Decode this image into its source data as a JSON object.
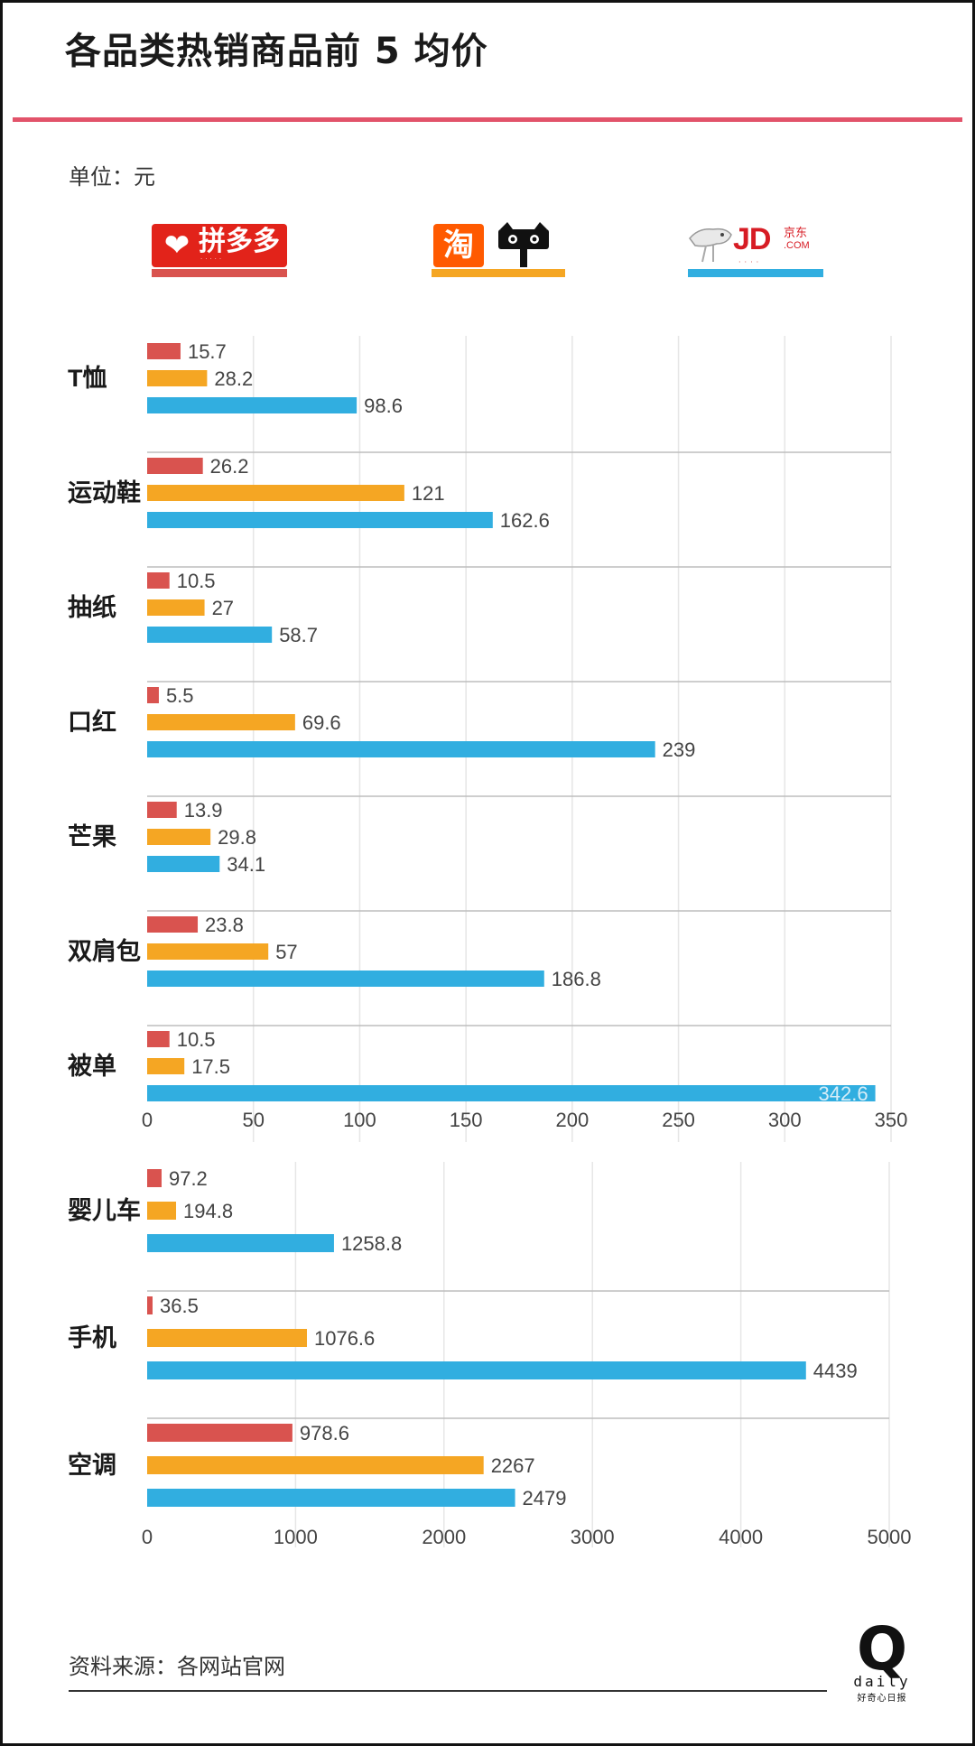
{
  "title": "各品类热销商品前 5 均价",
  "unit_label": "单位：元",
  "source": "资料来源：各网站官网",
  "brands": {
    "pinduoduo": {
      "name": "拼多多",
      "color": "#d9534f"
    },
    "taobao": {
      "name": "淘",
      "color": "#f5a623"
    },
    "jd": {
      "name": "JD.COM",
      "cn": "京东",
      "color": "#31aee0"
    }
  },
  "footer_logo": {
    "mark": "Q",
    "word": "daily",
    "cn": "好奇心日报"
  },
  "chart_data": [
    {
      "type": "bar",
      "orientation": "horizontal",
      "categories": [
        "T恤",
        "运动鞋",
        "抽纸",
        "口红",
        "芒果",
        "双肩包",
        "被单"
      ],
      "series": [
        {
          "values": [
            15.7,
            26.2,
            10.5,
            5.5,
            13.9,
            23.8,
            10.5
          ],
          "color": "#d9534f"
        },
        {
          "values": [
            28.2,
            121,
            27,
            69.6,
            29.8,
            57,
            17.5
          ],
          "color": "#f5a623"
        },
        {
          "values": [
            98.6,
            162.6,
            58.7,
            239,
            34.1,
            186.8,
            342.6
          ],
          "color": "#31aee0"
        }
      ],
      "value_labels": [
        [
          "15.7",
          "26.2",
          "10.5",
          "5.5",
          "13.9",
          "23.8",
          "10.5"
        ],
        [
          "28.2",
          "121",
          "27",
          "69.6",
          "29.8",
          "57",
          "17.5"
        ],
        [
          "98.6",
          "162.6",
          "58.7",
          "239",
          "34.1",
          "186.8",
          "342.6"
        ]
      ],
      "xlim": [
        0,
        350
      ],
      "xticks": [
        0,
        50,
        100,
        150,
        200,
        250,
        300,
        350
      ],
      "xtick_labels": [
        "0",
        "50",
        "100",
        "150",
        "200",
        "250",
        "300",
        "350"
      ],
      "grid": true
    },
    {
      "type": "bar",
      "orientation": "horizontal",
      "categories": [
        "婴儿车",
        "手机",
        "空调"
      ],
      "series": [
        {
          "values": [
            97.2,
            36.5,
            978.6
          ],
          "color": "#d9534f"
        },
        {
          "values": [
            194.8,
            1076.6,
            2267
          ],
          "color": "#f5a623"
        },
        {
          "values": [
            1258.8,
            4439,
            2479
          ],
          "color": "#31aee0"
        }
      ],
      "value_labels": [
        [
          "97.2",
          "36.5",
          "978.6"
        ],
        [
          "194.8",
          "1076.6",
          "2267"
        ],
        [
          "1258.8",
          "4439",
          "2479"
        ]
      ],
      "xlim": [
        0,
        5000
      ],
      "xticks": [
        0,
        1000,
        2000,
        3000,
        4000,
        5000
      ],
      "xtick_labels": [
        "0",
        "1000",
        "2000",
        "3000",
        "4000",
        "5000"
      ],
      "grid": true
    }
  ]
}
